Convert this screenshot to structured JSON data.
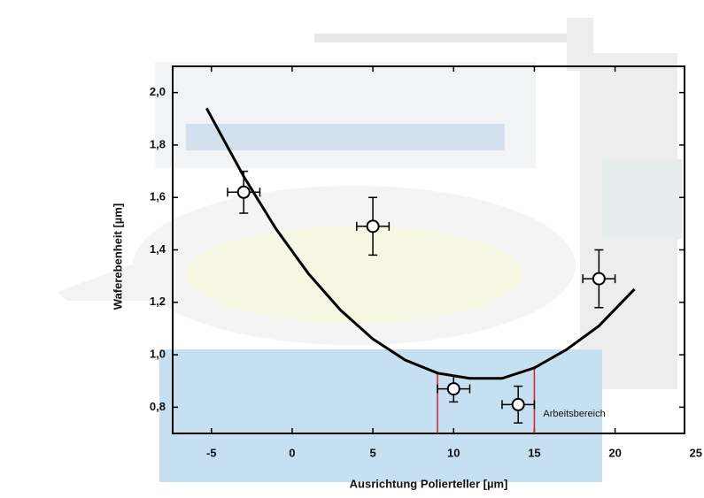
{
  "chart_data": {
    "type": "scatter",
    "xlabel": "Ausrichtung Polierteller [µm]",
    "ylabel": "Waferebenheit [µm]",
    "x": [
      -3,
      5,
      10,
      14,
      19
    ],
    "values": [
      1.62,
      1.49,
      0.87,
      0.81,
      1.29
    ],
    "xerr": [
      1,
      1,
      1,
      1,
      1
    ],
    "yerr": [
      0.08,
      0.11,
      0.05,
      0.07,
      0.11
    ],
    "fit": {
      "x": [
        -5.3,
        -3,
        -1,
        1,
        3,
        5,
        7,
        9,
        11,
        13,
        15,
        17,
        19,
        21.2
      ],
      "values": [
        1.94,
        1.68,
        1.48,
        1.31,
        1.17,
        1.06,
        0.98,
        0.93,
        0.91,
        0.91,
        0.95,
        1.02,
        1.11,
        1.25
      ],
      "color": "#000000"
    },
    "range": {
      "label": "Arbeitsbereich",
      "x": [
        9,
        15
      ],
      "color": "#cc2233"
    },
    "xlim": [
      -7.4,
      24.3
    ],
    "ylim": [
      0.7,
      2.1
    ],
    "xticks": [
      -5,
      0,
      5,
      10,
      15,
      20,
      25
    ],
    "yticks": [
      {
        "value": 0.8,
        "label": "0,8"
      },
      {
        "value": 1.0,
        "label": "1,0"
      },
      {
        "value": 1.2,
        "label": "1,2"
      },
      {
        "value": 1.4,
        "label": "1,4"
      },
      {
        "value": 1.6,
        "label": "1,6"
      },
      {
        "value": 1.8,
        "label": "1,8"
      },
      {
        "value": 2.0,
        "label": "2,0"
      }
    ]
  }
}
